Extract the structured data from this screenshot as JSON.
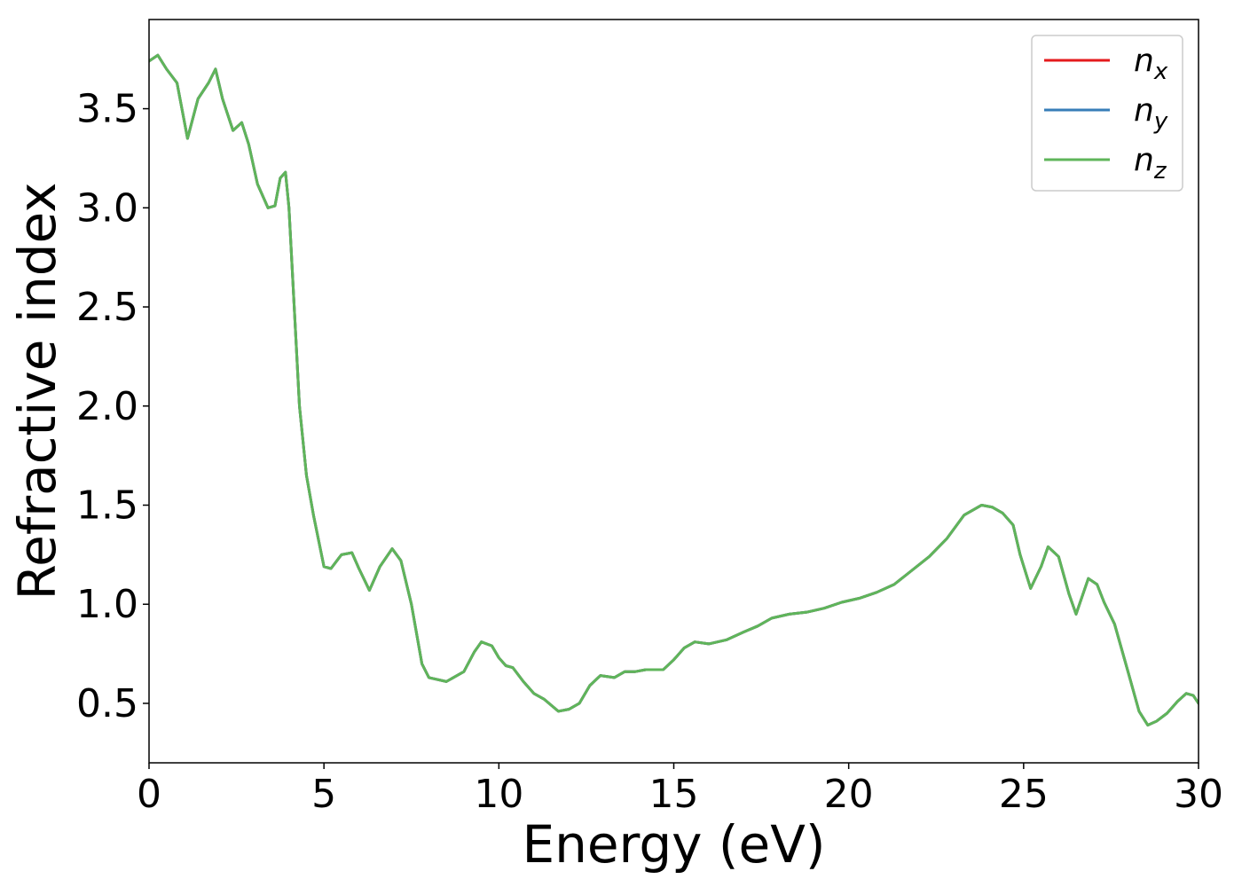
{
  "chart_data": {
    "type": "line",
    "xlabel": "Energy (eV)",
    "ylabel": "Refractive index",
    "xlim": [
      0,
      30
    ],
    "ylim": [
      0.2,
      3.95
    ],
    "xticks": [
      0,
      5,
      10,
      15,
      20,
      25,
      30
    ],
    "yticks": [
      0.5,
      1.0,
      1.5,
      2.0,
      2.5,
      3.0,
      3.5
    ],
    "xtick_labels": [
      "0",
      "5",
      "10",
      "15",
      "20",
      "25",
      "30"
    ],
    "ytick_labels": [
      "0.5",
      "1.0",
      "1.5",
      "2.0",
      "2.5",
      "3.0",
      "3.5"
    ],
    "grid": false,
    "legend_position": "top-right",
    "x": [
      0,
      0.25,
      0.5,
      0.8,
      1.1,
      1.4,
      1.7,
      1.9,
      2.1,
      2.4,
      2.65,
      2.85,
      3.1,
      3.4,
      3.6,
      3.75,
      3.9,
      4.0,
      4.15,
      4.3,
      4.5,
      4.7,
      5.0,
      5.2,
      5.5,
      5.8,
      6.0,
      6.3,
      6.6,
      6.95,
      7.2,
      7.5,
      7.8,
      8.0,
      8.5,
      9.0,
      9.3,
      9.5,
      9.8,
      10.0,
      10.2,
      10.4,
      10.7,
      11.0,
      11.3,
      11.7,
      12.0,
      12.3,
      12.6,
      12.9,
      13.3,
      13.6,
      13.9,
      14.2,
      14.7,
      15.0,
      15.3,
      15.6,
      16.0,
      16.5,
      17.0,
      17.4,
      17.8,
      18.3,
      18.8,
      19.3,
      19.8,
      20.3,
      20.8,
      21.3,
      21.8,
      22.3,
      22.8,
      23.3,
      23.8,
      24.1,
      24.4,
      24.7,
      24.9,
      25.2,
      25.5,
      25.7,
      26.0,
      26.3,
      26.5,
      26.85,
      27.1,
      27.3,
      27.6,
      28.0,
      28.3,
      28.55,
      28.8,
      29.1,
      29.4,
      29.65,
      29.85,
      30.0
    ],
    "series": [
      {
        "name": "n_x",
        "name_base": "n",
        "name_sub": "x",
        "color": "#e41a1c",
        "values": [
          3.74,
          3.77,
          3.7,
          3.63,
          3.35,
          3.55,
          3.63,
          3.7,
          3.55,
          3.39,
          3.43,
          3.32,
          3.12,
          3.0,
          3.01,
          3.15,
          3.18,
          3.0,
          2.5,
          2.0,
          1.65,
          1.45,
          1.19,
          1.18,
          1.25,
          1.26,
          1.18,
          1.07,
          1.19,
          1.28,
          1.22,
          1.0,
          0.7,
          0.63,
          0.61,
          0.66,
          0.76,
          0.81,
          0.79,
          0.73,
          0.69,
          0.68,
          0.61,
          0.55,
          0.52,
          0.46,
          0.47,
          0.5,
          0.59,
          0.64,
          0.63,
          0.66,
          0.66,
          0.67,
          0.67,
          0.72,
          0.78,
          0.81,
          0.8,
          0.82,
          0.86,
          0.89,
          0.93,
          0.95,
          0.96,
          0.98,
          1.01,
          1.03,
          1.06,
          1.1,
          1.17,
          1.24,
          1.33,
          1.45,
          1.5,
          1.49,
          1.46,
          1.4,
          1.25,
          1.08,
          1.19,
          1.29,
          1.24,
          1.05,
          0.95,
          1.13,
          1.1,
          1.01,
          0.9,
          0.65,
          0.46,
          0.39,
          0.41,
          0.45,
          0.51,
          0.55,
          0.54,
          0.5
        ]
      },
      {
        "name": "n_y",
        "name_base": "n",
        "name_sub": "y",
        "color": "#377eb8",
        "values": [
          3.74,
          3.77,
          3.7,
          3.63,
          3.35,
          3.55,
          3.63,
          3.7,
          3.55,
          3.39,
          3.43,
          3.32,
          3.12,
          3.0,
          3.01,
          3.15,
          3.18,
          3.0,
          2.5,
          2.0,
          1.65,
          1.45,
          1.19,
          1.18,
          1.25,
          1.26,
          1.18,
          1.07,
          1.19,
          1.28,
          1.22,
          1.0,
          0.7,
          0.63,
          0.61,
          0.66,
          0.76,
          0.81,
          0.79,
          0.73,
          0.69,
          0.68,
          0.61,
          0.55,
          0.52,
          0.46,
          0.47,
          0.5,
          0.59,
          0.64,
          0.63,
          0.66,
          0.66,
          0.67,
          0.67,
          0.72,
          0.78,
          0.81,
          0.8,
          0.82,
          0.86,
          0.89,
          0.93,
          0.95,
          0.96,
          0.98,
          1.01,
          1.03,
          1.06,
          1.1,
          1.17,
          1.24,
          1.33,
          1.45,
          1.5,
          1.49,
          1.46,
          1.4,
          1.25,
          1.08,
          1.19,
          1.29,
          1.24,
          1.05,
          0.95,
          1.13,
          1.1,
          1.01,
          0.9,
          0.65,
          0.46,
          0.39,
          0.41,
          0.45,
          0.51,
          0.55,
          0.54,
          0.5
        ]
      },
      {
        "name": "n_z",
        "name_base": "n",
        "name_sub": "z",
        "color": "#5fb55a",
        "values": [
          3.74,
          3.77,
          3.7,
          3.63,
          3.35,
          3.55,
          3.63,
          3.7,
          3.55,
          3.39,
          3.43,
          3.32,
          3.12,
          3.0,
          3.01,
          3.15,
          3.18,
          3.0,
          2.5,
          2.0,
          1.65,
          1.45,
          1.19,
          1.18,
          1.25,
          1.26,
          1.18,
          1.07,
          1.19,
          1.28,
          1.22,
          1.0,
          0.7,
          0.63,
          0.61,
          0.66,
          0.76,
          0.81,
          0.79,
          0.73,
          0.69,
          0.68,
          0.61,
          0.55,
          0.52,
          0.46,
          0.47,
          0.5,
          0.59,
          0.64,
          0.63,
          0.66,
          0.66,
          0.67,
          0.67,
          0.72,
          0.78,
          0.81,
          0.8,
          0.82,
          0.86,
          0.89,
          0.93,
          0.95,
          0.96,
          0.98,
          1.01,
          1.03,
          1.06,
          1.1,
          1.17,
          1.24,
          1.33,
          1.45,
          1.5,
          1.49,
          1.46,
          1.4,
          1.25,
          1.08,
          1.19,
          1.29,
          1.24,
          1.05,
          0.95,
          1.13,
          1.1,
          1.01,
          0.9,
          0.65,
          0.46,
          0.39,
          0.41,
          0.45,
          0.51,
          0.55,
          0.54,
          0.5
        ]
      }
    ]
  }
}
